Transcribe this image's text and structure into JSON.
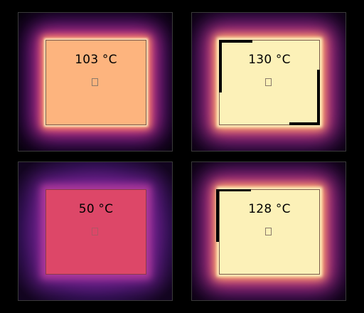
{
  "colors": {
    "background": "#000000",
    "panel_border": "#3a3a3a",
    "plate_orange": "#fdb47e",
    "plate_pale_yellow": "#fcf1b8",
    "plate_red": "#dd4768",
    "glow_purple": "#7a1a9a"
  },
  "panels": [
    {
      "temperature_label": "103 °C"
    },
    {
      "temperature_label": "130 °C"
    },
    {
      "temperature_label": "50 °C"
    },
    {
      "temperature_label": "128 °C"
    }
  ]
}
